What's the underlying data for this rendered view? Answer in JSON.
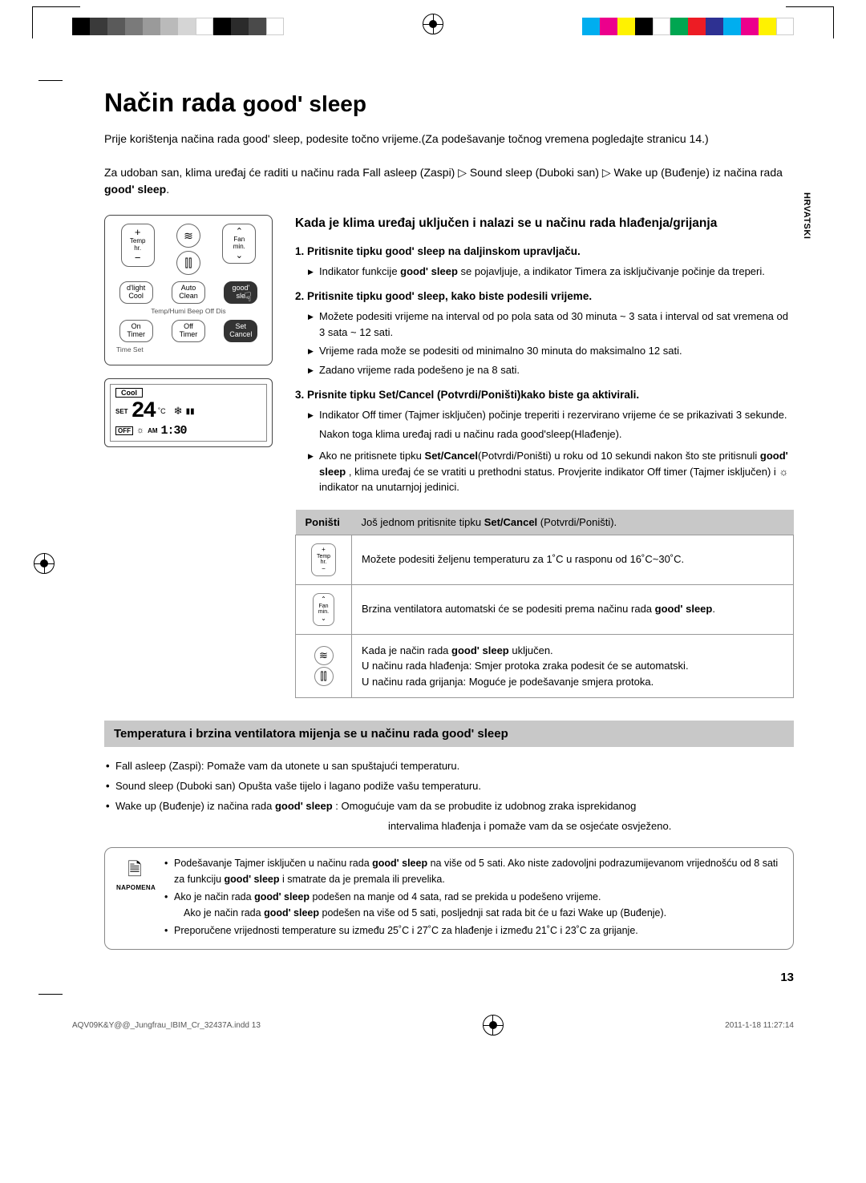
{
  "printer_colors_left": [
    "#000000",
    "#3a3a3a",
    "#5a5a5a",
    "#7a7a7a",
    "#9a9a9a",
    "#bababa",
    "#d5d5d5",
    "#ffffff",
    "#000000",
    "#2b2b2b",
    "#4a4a4a",
    "#ffffff"
  ],
  "printer_colors_right": [
    "#00aeef",
    "#ec008c",
    "#fff200",
    "#000000",
    "#ffffff",
    "#00a651",
    "#ed1c24",
    "#2e3192",
    "#00aeef",
    "#ec008c",
    "#fff200",
    "#ffffff"
  ],
  "side_label": "HRVATSKI",
  "title_main": "Način rada ",
  "title_accent": "good' sleep",
  "intro_1": "Prije korištenja načina rada good' sleep, podesite točno vrijeme.(Za podešavanje točnog vremena pogledajte stranicu 14.)",
  "intro_2a": "Za udoban san, klima uređaj će raditi u načinu rada Fall asleep (Zaspi) ▷ Sound sleep (Duboki san) ▷ Wake up (Buđenje) iz načina rada ",
  "intro_2b": "good' sleep",
  "intro_2c": ".",
  "remote": {
    "temp": "Temp\nhr.",
    "fan": "Fan\nmin.",
    "plus": "+",
    "minus": "−",
    "up": "⌃",
    "down": "⌄",
    "swing1": "≋",
    "swing2": "⫿⫿",
    "dlight": "d'light\nCool",
    "auto": "Auto\nClean",
    "good": "good'\nsle",
    "row3_labels": "Temp/Humi    Beep Off    Dis",
    "on": "On\nTimer",
    "off": "Off\nTimer",
    "set": "Set\nCancel",
    "timeset": "Time Set"
  },
  "lcd": {
    "cool": "Cool",
    "set": "SET",
    "temp": "24",
    "c": "˚C",
    "off": "OFF",
    "am": "AM",
    "time": "1:30"
  },
  "h2": "Kada je klima uređaj uključen i nalazi se u načinu rada hlađenja/grijanja",
  "step1_a": "1.   Pritisnite tipku ",
  "step1_b": "good' sleep",
  "step1_c": " na daljinskom upravljaču.",
  "step1_bullet_a": "Indikator funkcije ",
  "step1_bullet_b": "good' sleep",
  "step1_bullet_c": " se pojavljuje, a indikator Timera za isključivanje počinje da treperi.",
  "step2_a": "2.   Pritisnite tipku ",
  "step2_b": "good' sleep",
  "step2_c": ",  kako biste podesili vrijeme.",
  "step2_bullets": [
    "Možete podesiti vrijeme na interval od po pola sata od 30 minuta ~ 3 sata i interval od sat vremena od 3 sata ~ 12 sati.",
    "Vrijeme rada može se podesiti od minimalno 30 minuta do maksimalno 12 sati.",
    "Zadano vrijeme rada podešeno je na 8 sati."
  ],
  "step3_a": "3.   Prisnite tipku ",
  "step3_b": "Set/Cancel (Potvrdi/Poništi)",
  "step3_c": "kako biste ga aktivirali.",
  "step3_bullet1": "Indikator Off timer (Tajmer isključen) počinje treperiti i rezervirano vrijeme će se prikazivati 3 sekunde.",
  "step3_plain": "Nakon toga klima uređaj radi u načinu rada good'sleep(Hlađenje).",
  "step3_bullet2_a": "Ako ne pritisnete tipku ",
  "step3_bullet2_b": "Set/Cancel",
  "step3_bullet2_c": "(Potvrdi/Poništi) u roku od 10 sekundi nakon što ste pritisnuli ",
  "step3_bullet2_d": "good' sleep",
  "step3_bullet2_e": " , klima uređaj će se vratiti u prethodni status.  Provjerite indikator Off timer (Tajmer isključen) i ☼ indikator na unutarnjoj jedinici.",
  "table": {
    "th1": "Poništi",
    "th2_a": "Još jednom pritisnite tipku ",
    "th2_b": "Set/Cancel",
    "th2_c": " (Potvrdi/Poništi).",
    "r1_btn_top": "+",
    "r1_btn_mid": "Temp\nhr.",
    "r1_btn_bot": "−",
    "r1": "Možete podesiti željenu temperaturu za 1˚C u rasponu od 16˚C~30˚C.",
    "r2_btn_top": "⌃",
    "r2_btn_mid": "Fan\nmin.",
    "r2_btn_bot": "⌄",
    "r2_a": "Brzina ventilatora automatski će se podesiti prema načinu rada ",
    "r2_b": "good' sleep",
    "r2_c": ".",
    "r3_icon1": "≋",
    "r3_icon2": "⫿⫿",
    "r3_l1_a": "Kada je način rada ",
    "r3_l1_b": "good' sleep",
    "r3_l1_c": " uključen.",
    "r3_l2": "U načinu rada hlađenja: Smjer protoka zraka podesit će se automatski.",
    "r3_l3": "U načinu rada grijanja: Moguće je podešavanje smjera protoka."
  },
  "section2_a": "Temperatura i brzina ventilatora mijenja se u načinu rada ",
  "section2_b": "good' sleep",
  "final_bullets": {
    "b1": "Fall asleep (Zaspi):  Pomaže vam da utonete u san spuštajući temperaturu.",
    "b2": "Sound sleep (Duboki san) Opušta vaše tijelo i lagano podiže vašu temperaturu.",
    "b3_a": "Wake up (Buđenje) iz načina rada ",
    "b3_b": "good' sleep",
    "b3_c": " : Omogućuje vam da se probudite iz udobnog zraka isprekidanog",
    "b3_cont": "intervalima hlađenja i pomaže vam da se osjećate osvježeno."
  },
  "note_label": "NAPOMENA",
  "note": {
    "n1_a": "Podešavanje Tajmer isključen u načinu rada ",
    "n1_b": "good' sleep",
    "n1_c": " na više od 5 sati.  Ako niste zadovoljni podrazumijevanom vrijednošću od 8 sati za funkciju ",
    "n1_d": "good' sleep",
    "n1_e": " i smatrate da je premala ili prevelika.",
    "n2_a": "Ako je način rada ",
    "n2_b": "good' sleep",
    "n2_c": " podešen na manje od 4 sata, rad se prekida u podešeno vrijeme.",
    "n2_sub_a": "Ako je način rada ",
    "n2_sub_b": "good' sleep",
    "n2_sub_c": " podešen na više od 5 sati, posljednji sat rada bit će u fazi Wake up (Buđenje).",
    "n3": "Preporučene vrijednosti temperature su između 25˚C i 27˚C za hlađenje i između 21˚C i 23˚C za grijanje."
  },
  "page_num": "13",
  "footer_left": "AQV09K&Y@@_Jungfrau_IBIM_Cr_32437A.indd   13",
  "footer_right": "2011-1-18   11:27:14"
}
